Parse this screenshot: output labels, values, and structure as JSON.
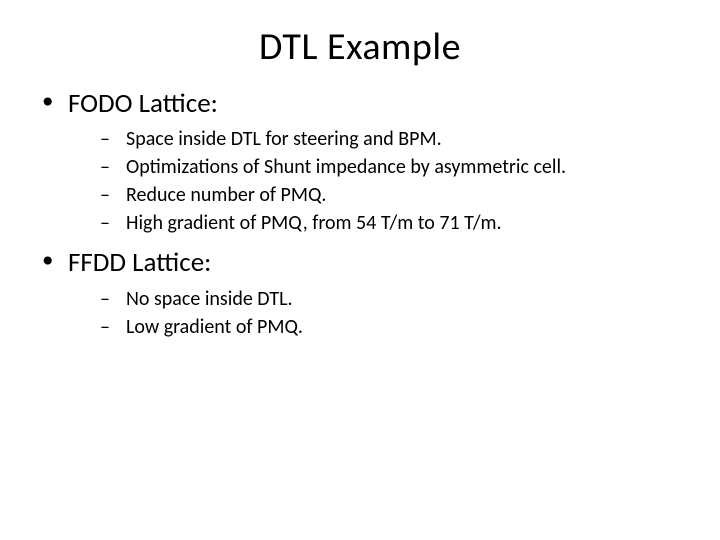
{
  "title": "DTL Example",
  "bullets": [
    {
      "text": "FODO Lattice:",
      "sub": [
        "Space inside DTL for steering and BPM.",
        "Optimizations of Shunt impedance by asymmetric cell.",
        "Reduce number of PMQ.",
        "High gradient of PMQ, from 54 T/m to 71 T/m."
      ]
    },
    {
      "text": "FFDD Lattice:",
      "sub": [
        "No space inside DTL.",
        "Low gradient of PMQ."
      ]
    }
  ],
  "style": {
    "background_color": "#ffffff",
    "text_color": "#000000",
    "title_fontsize": 38,
    "level1_fontsize": 27,
    "level2_fontsize": 20,
    "font_family": "Calibri"
  }
}
